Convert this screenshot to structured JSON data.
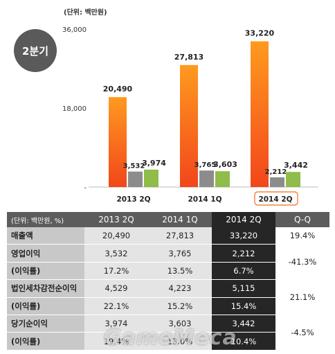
{
  "badge": "2분기",
  "chart_data": {
    "type": "bar",
    "unit_label": "(단위: 백만원)",
    "categories": [
      "2013 2Q",
      "2014 1Q",
      "2014 2Q"
    ],
    "highlight_category": "2014 2Q",
    "yticks": [
      "36,000",
      "18,000",
      "-"
    ],
    "ylim": [
      0,
      36000
    ],
    "series": [
      {
        "values": [
          20490,
          27813,
          33220
        ],
        "labels": [
          "20,490",
          "27,813",
          "33,220"
        ],
        "color": "#f26b1d"
      },
      {
        "values": [
          3532,
          3765,
          2212
        ],
        "labels": [
          "3,532",
          "3,765",
          "2,212"
        ],
        "color": "#8c8c8c"
      },
      {
        "values": [
          3974,
          3603,
          3442
        ],
        "labels": [
          "3,974",
          "3,603",
          "3,442"
        ],
        "color": "#8fbc4a"
      }
    ]
  },
  "table": {
    "unit": "(단위: 백만원, %)",
    "columns": [
      "2013 2Q",
      "2014 1Q",
      "2014 2Q",
      "Q-Q"
    ],
    "rows": [
      {
        "label": "매출액",
        "values": [
          "20,490",
          "27,813",
          "33,220"
        ],
        "qq": "19.4%"
      },
      {
        "label": "영업이익",
        "values": [
          "3,532",
          "3,765",
          "2,212"
        ],
        "qq": "-41.3%"
      },
      {
        "label": "(이익률)",
        "values": [
          "17.2%",
          "13.5%",
          "6.7%"
        ]
      },
      {
        "label": "법인세차감전순이익",
        "values": [
          "4,529",
          "4,223",
          "5,115"
        ],
        "qq": "21.1%"
      },
      {
        "label": "(이익률)",
        "values": [
          "22.1%",
          "15.2%",
          "15.4%"
        ]
      },
      {
        "label": "당기순이익",
        "values": [
          "3,974",
          "3,603",
          "3,442"
        ],
        "qq": "-4.5%"
      },
      {
        "label": "(이익률)",
        "values": [
          "19.4%",
          "13.0%",
          "10.4%"
        ]
      }
    ]
  },
  "watermark": "GameMeca"
}
